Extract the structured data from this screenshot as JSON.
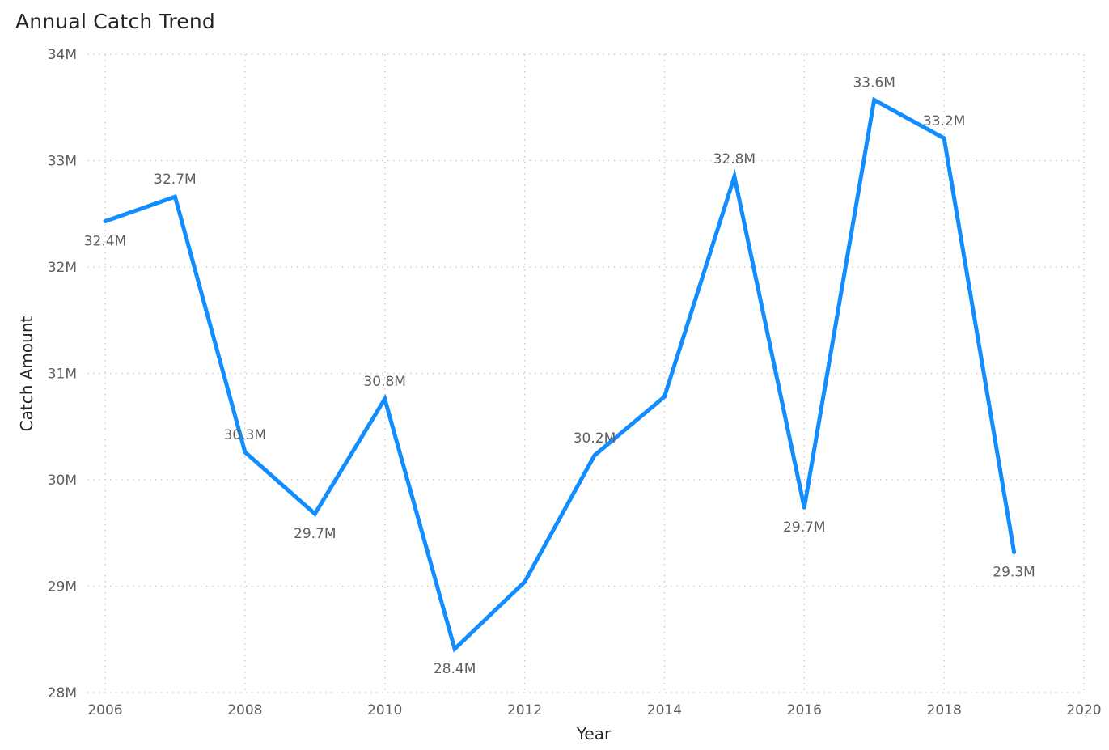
{
  "title": "Annual Catch Trend",
  "colors": {
    "line": "#118dff",
    "grid": "#c8c6c4",
    "tick_text": "#605e5c",
    "title_text": "#252423"
  },
  "chart_data": {
    "type": "line",
    "title": "Annual Catch Trend",
    "xlabel": "Year",
    "ylabel": "Catch Amount",
    "xlim": [
      2006,
      2020
    ],
    "ylim": [
      28000000,
      34000000
    ],
    "x_ticks": [
      2006,
      2008,
      2010,
      2012,
      2014,
      2016,
      2018,
      2020
    ],
    "x_tick_labels": [
      "2006",
      "2008",
      "2010",
      "2012",
      "2014",
      "2016",
      "2018",
      "2020"
    ],
    "y_ticks": [
      28000000,
      29000000,
      30000000,
      31000000,
      32000000,
      33000000,
      34000000
    ],
    "y_tick_labels": [
      "28M",
      "29M",
      "30M",
      "31M",
      "32M",
      "33M",
      "34M"
    ],
    "grid": true,
    "series": [
      {
        "x": [
          2006,
          2007,
          2008,
          2009,
          2010,
          2011,
          2012,
          2013,
          2014,
          2015,
          2016,
          2017,
          2018,
          2019
        ],
        "y": [
          32430000,
          32660000,
          30260000,
          29680000,
          30760000,
          28410000,
          29040000,
          30230000,
          30780000,
          32850000,
          29740000,
          33570000,
          33210000,
          29320000
        ]
      }
    ],
    "data_labels": [
      {
        "x": 2006,
        "text": "32.4M",
        "position": "below"
      },
      {
        "x": 2007,
        "text": "32.7M",
        "position": "above"
      },
      {
        "x": 2008,
        "text": "30.3M",
        "position": "above"
      },
      {
        "x": 2009,
        "text": "29.7M",
        "position": "below"
      },
      {
        "x": 2010,
        "text": "30.8M",
        "position": "above"
      },
      {
        "x": 2011,
        "text": "28.4M",
        "position": "below"
      },
      {
        "x": 2013,
        "text": "30.2M",
        "position": "above"
      },
      {
        "x": 2015,
        "text": "32.8M",
        "position": "above"
      },
      {
        "x": 2016,
        "text": "29.7M",
        "position": "below"
      },
      {
        "x": 2017,
        "text": "33.6M",
        "position": "above"
      },
      {
        "x": 2018,
        "text": "33.2M",
        "position": "above"
      },
      {
        "x": 2019,
        "text": "29.3M",
        "position": "below"
      }
    ]
  }
}
